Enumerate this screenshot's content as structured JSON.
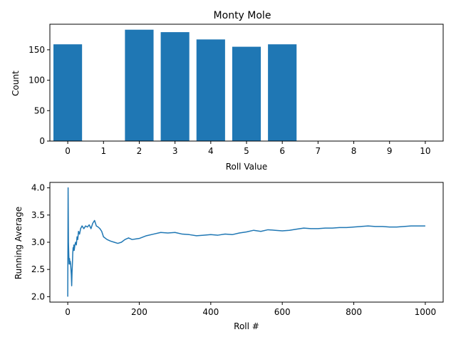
{
  "chart_data": [
    {
      "type": "bar",
      "title": "Monty Mole",
      "xlabel": "Roll Value",
      "ylabel": "Count",
      "categories": [
        0,
        1,
        2,
        3,
        4,
        5,
        6,
        7,
        8,
        9,
        10
      ],
      "values": [
        159,
        0,
        183,
        179,
        167,
        155,
        159,
        0,
        0,
        0,
        0
      ],
      "xticks": [
        "0",
        "1",
        "2",
        "3",
        "4",
        "5",
        "6",
        "7",
        "8",
        "9",
        "10"
      ],
      "yticks": [
        "0",
        "50",
        "100",
        "150"
      ],
      "ylim": [
        0,
        192
      ],
      "xlim": [
        -0.5,
        10.5
      ],
      "color": "#1f77b4",
      "grid": false
    },
    {
      "type": "line",
      "title": "",
      "xlabel": "Roll #",
      "ylabel": "Running Average",
      "x_ticks": [
        0,
        200,
        400,
        600,
        800,
        1000
      ],
      "y_ticks": [
        2.0,
        2.5,
        3.0,
        3.5,
        4.0
      ],
      "xtick_labels": [
        "0",
        "200",
        "400",
        "600",
        "800",
        "1000"
      ],
      "ytick_labels": [
        "2.0",
        "2.5",
        "3.0",
        "3.5",
        "4.0"
      ],
      "xlim": [
        -50,
        1050
      ],
      "ylim": [
        1.9,
        4.1
      ],
      "color": "#1f77b4",
      "grid": false,
      "series": [
        {
          "x": [
            0,
            1,
            2,
            3,
            4,
            5,
            6,
            7,
            8,
            9,
            10,
            11,
            12,
            13,
            14,
            15,
            16,
            17,
            18,
            19,
            20,
            22,
            24,
            26,
            28,
            30,
            33,
            36,
            40,
            45,
            50,
            55,
            60,
            65,
            70,
            75,
            80,
            85,
            90,
            95,
            100,
            110,
            120,
            130,
            140,
            150,
            160,
            170,
            180,
            190,
            200,
            220,
            240,
            260,
            280,
            300,
            320,
            340,
            360,
            380,
            400,
            420,
            440,
            460,
            480,
            500,
            520,
            540,
            560,
            580,
            600,
            620,
            640,
            660,
            680,
            700,
            720,
            740,
            760,
            780,
            800,
            820,
            840,
            860,
            880,
            900,
            920,
            940,
            960,
            980,
            1000
          ],
          "y": [
            2.0,
            4.0,
            3.0,
            2.75,
            2.6,
            2.7,
            2.6,
            2.65,
            2.6,
            2.5,
            2.4,
            2.2,
            2.45,
            2.6,
            2.8,
            2.9,
            2.85,
            2.95,
            2.85,
            2.9,
            2.95,
            3.0,
            2.95,
            3.1,
            3.05,
            3.2,
            3.15,
            3.25,
            3.3,
            3.25,
            3.3,
            3.28,
            3.32,
            3.25,
            3.35,
            3.4,
            3.3,
            3.28,
            3.25,
            3.2,
            3.1,
            3.05,
            3.02,
            3.0,
            2.98,
            3.0,
            3.05,
            3.08,
            3.05,
            3.06,
            3.07,
            3.12,
            3.15,
            3.18,
            3.17,
            3.18,
            3.15,
            3.14,
            3.12,
            3.13,
            3.14,
            3.13,
            3.15,
            3.14,
            3.17,
            3.19,
            3.22,
            3.2,
            3.23,
            3.22,
            3.21,
            3.22,
            3.24,
            3.26,
            3.25,
            3.25,
            3.26,
            3.26,
            3.27,
            3.27,
            3.28,
            3.29,
            3.3,
            3.29,
            3.29,
            3.28,
            3.28,
            3.29,
            3.3,
            3.3,
            3.3
          ]
        }
      ]
    }
  ]
}
